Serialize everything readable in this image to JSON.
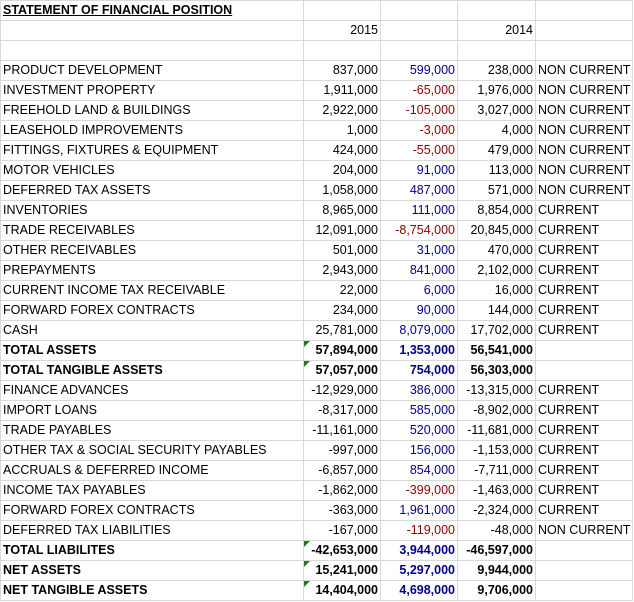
{
  "title": "STATEMENT OF FINANCIAL POSITION",
  "years": [
    "2015",
    "2014"
  ],
  "colors": {
    "positive_change": "#00008b",
    "negative_change": "#8b0000",
    "error_flag": "#1f7a1f"
  },
  "rows": [
    {
      "label": "PRODUCT DEVELOPMENT",
      "y2015": "837,000",
      "change": "599,000",
      "y2014": "238,000",
      "classification": "NON CURRENT",
      "bold": false,
      "flag": false
    },
    {
      "label": "INVESTMENT PROPERTY",
      "y2015": "1,911,000",
      "change": "-65,000",
      "y2014": "1,976,000",
      "classification": "NON CURRENT",
      "bold": false,
      "flag": false
    },
    {
      "label": "FREEHOLD LAND & BUILDINGS",
      "y2015": "2,922,000",
      "change": "-105,000",
      "y2014": "3,027,000",
      "classification": "NON CURRENT",
      "bold": false,
      "flag": false
    },
    {
      "label": "LEASEHOLD IMPROVEMENTS",
      "y2015": "1,000",
      "change": "-3,000",
      "y2014": "4,000",
      "classification": "NON CURRENT",
      "bold": false,
      "flag": false
    },
    {
      "label": "FITTINGS, FIXTURES & EQUIPMENT",
      "y2015": "424,000",
      "change": "-55,000",
      "y2014": "479,000",
      "classification": "NON CURRENT",
      "bold": false,
      "flag": false
    },
    {
      "label": "MOTOR VEHICLES",
      "y2015": "204,000",
      "change": "91,000",
      "y2014": "113,000",
      "classification": "NON CURRENT",
      "bold": false,
      "flag": false
    },
    {
      "label": "DEFERRED TAX ASSETS",
      "y2015": "1,058,000",
      "change": "487,000",
      "y2014": "571,000",
      "classification": "NON CURRENT",
      "bold": false,
      "flag": false
    },
    {
      "label": "INVENTORIES",
      "y2015": "8,965,000",
      "change": "111,000",
      "y2014": "8,854,000",
      "classification": "CURRENT",
      "bold": false,
      "flag": false
    },
    {
      "label": "TRADE RECEIVABLES",
      "y2015": "12,091,000",
      "change": "-8,754,000",
      "y2014": "20,845,000",
      "classification": "CURRENT",
      "bold": false,
      "flag": false
    },
    {
      "label": "OTHER RECEIVABLES",
      "y2015": "501,000",
      "change": "31,000",
      "y2014": "470,000",
      "classification": "CURRENT",
      "bold": false,
      "flag": false
    },
    {
      "label": "PREPAYMENTS",
      "y2015": "2,943,000",
      "change": "841,000",
      "y2014": "2,102,000",
      "classification": "CURRENT",
      "bold": false,
      "flag": false
    },
    {
      "label": "CURRENT INCOME TAX RECEIVABLE",
      "y2015": "22,000",
      "change": "6,000",
      "y2014": "16,000",
      "classification": "CURRENT",
      "bold": false,
      "flag": false
    },
    {
      "label": "FORWARD FOREX CONTRACTS",
      "y2015": "234,000",
      "change": "90,000",
      "y2014": "144,000",
      "classification": "CURRENT",
      "bold": false,
      "flag": false
    },
    {
      "label": "CASH",
      "y2015": "25,781,000",
      "change": "8,079,000",
      "y2014": "17,702,000",
      "classification": "CURRENT",
      "bold": false,
      "flag": false
    },
    {
      "label": "TOTAL ASSETS",
      "y2015": "57,894,000",
      "change": "1,353,000",
      "y2014": "56,541,000",
      "classification": "",
      "bold": true,
      "flag": true
    },
    {
      "label": "TOTAL TANGIBLE ASSETS",
      "y2015": "57,057,000",
      "change": "754,000",
      "y2014": "56,303,000",
      "classification": "",
      "bold": true,
      "flag": true
    },
    {
      "label": "FINANCE ADVANCES",
      "y2015": "-12,929,000",
      "change": "386,000",
      "y2014": "-13,315,000",
      "classification": "CURRENT",
      "bold": false,
      "flag": false
    },
    {
      "label": "IMPORT LOANS",
      "y2015": "-8,317,000",
      "change": "585,000",
      "y2014": "-8,902,000",
      "classification": "CURRENT",
      "bold": false,
      "flag": false
    },
    {
      "label": "TRADE PAYABLES",
      "y2015": "-11,161,000",
      "change": "520,000",
      "y2014": "-11,681,000",
      "classification": "CURRENT",
      "bold": false,
      "flag": false
    },
    {
      "label": "OTHER TAX & SOCIAL SECURITY PAYABLES",
      "y2015": "-997,000",
      "change": "156,000",
      "y2014": "-1,153,000",
      "classification": "CURRENT",
      "bold": false,
      "flag": false
    },
    {
      "label": "ACCRUALS & DEFERRED INCOME",
      "y2015": "-6,857,000",
      "change": "854,000",
      "y2014": "-7,711,000",
      "classification": "CURRENT",
      "bold": false,
      "flag": false
    },
    {
      "label": "INCOME TAX PAYABLES",
      "y2015": "-1,862,000",
      "change": "-399,000",
      "y2014": "-1,463,000",
      "classification": "CURRENT",
      "bold": false,
      "flag": false
    },
    {
      "label": "FORWARD FOREX CONTRACTS",
      "y2015": "-363,000",
      "change": "1,961,000",
      "y2014": "-2,324,000",
      "classification": "CURRENT",
      "bold": false,
      "flag": false
    },
    {
      "label": "DEFERRED TAX LIABILITIES",
      "y2015": "-167,000",
      "change": "-119,000",
      "y2014": "-48,000",
      "classification": "NON CURRENT",
      "bold": false,
      "flag": false
    },
    {
      "label": "TOTAL LIABILITES",
      "y2015": "-42,653,000",
      "change": "3,944,000",
      "y2014": "-46,597,000",
      "classification": "",
      "bold": true,
      "flag": true
    },
    {
      "label": "NET ASSETS",
      "y2015": "15,241,000",
      "change": "5,297,000",
      "y2014": "9,944,000",
      "classification": "",
      "bold": true,
      "flag": true
    },
    {
      "label": "NET TANGIBLE ASSETS",
      "y2015": "14,404,000",
      "change": "4,698,000",
      "y2014": "9,706,000",
      "classification": "",
      "bold": true,
      "flag": true
    }
  ]
}
